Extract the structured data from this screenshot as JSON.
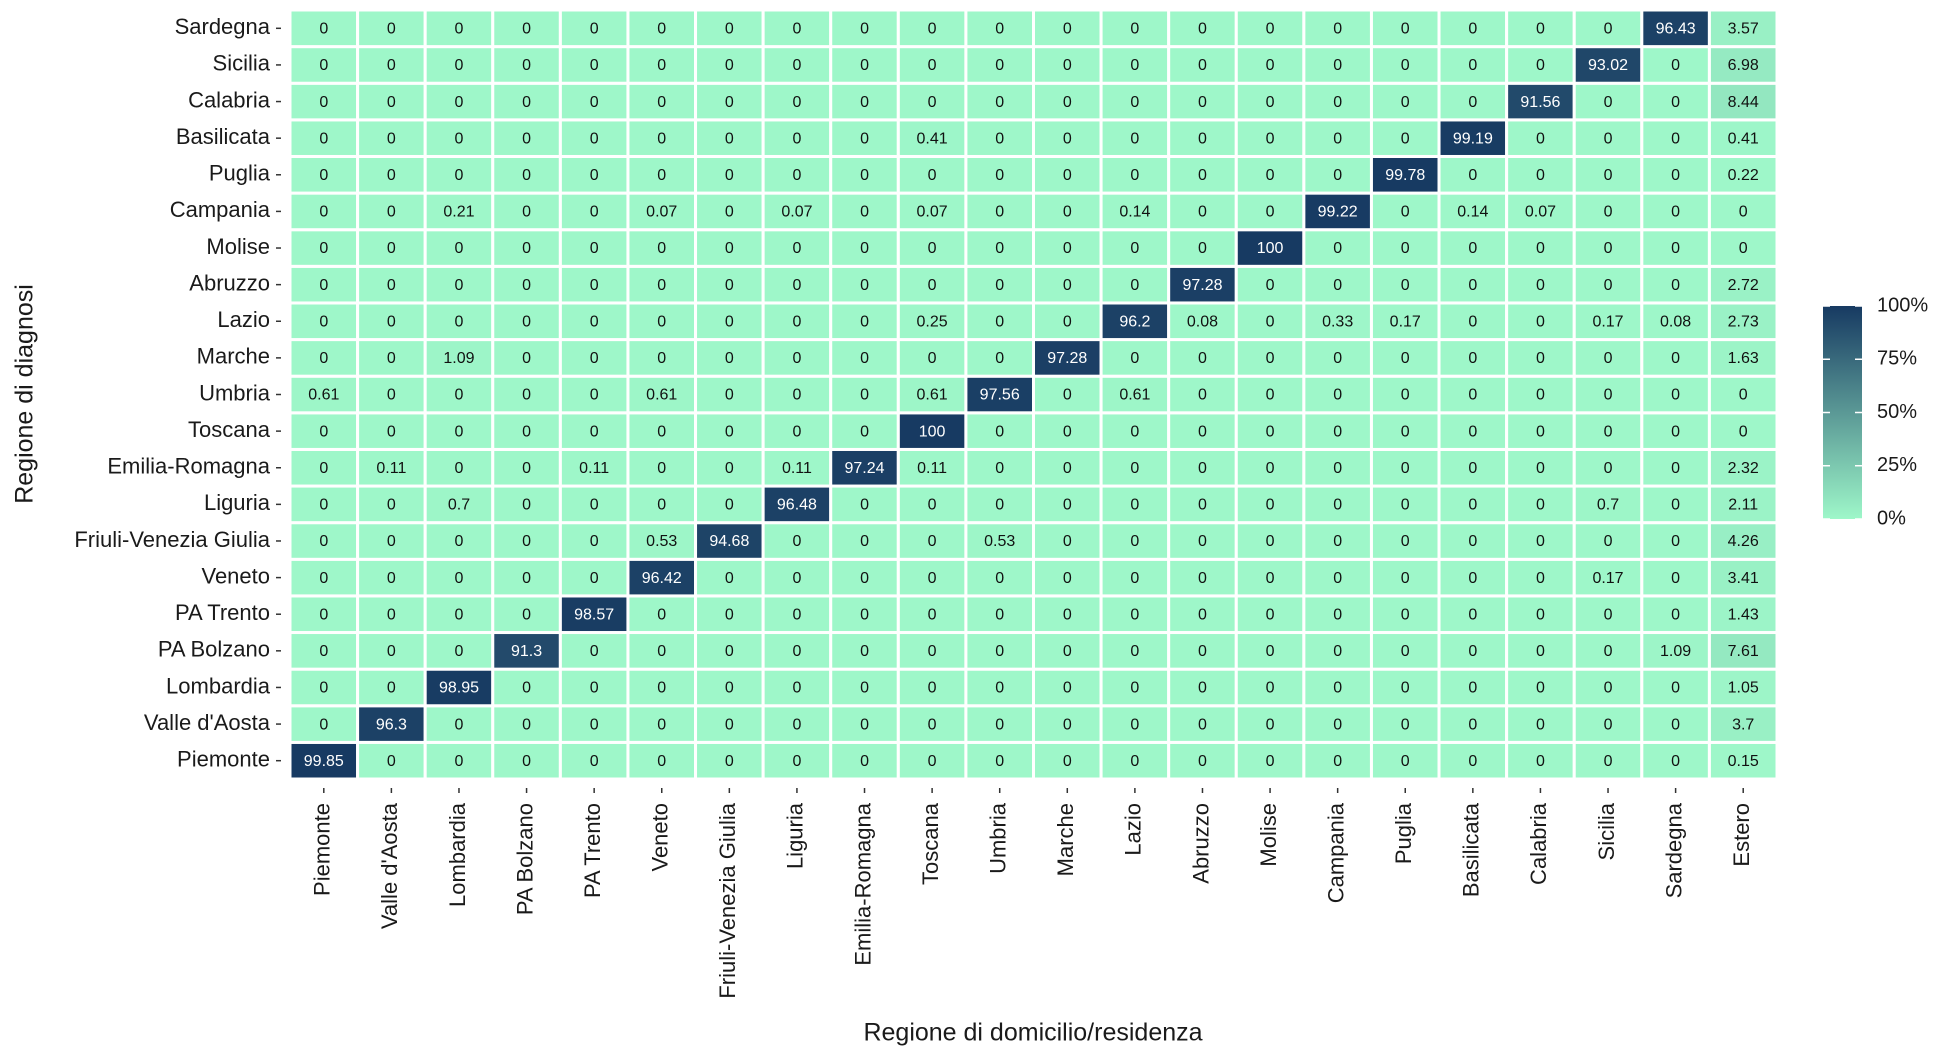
{
  "chart_data": {
    "type": "heatmap",
    "x_label": "Regione di domicilio/residenza",
    "y_label": "Regione di diagnosi",
    "x_categories": [
      "Piemonte",
      "Valle d'Aosta",
      "Lombardia",
      "PA Bolzano",
      "PA Trento",
      "Veneto",
      "Friuli-Venezia Giulia",
      "Liguria",
      "Emilia-Romagna",
      "Toscana",
      "Umbria",
      "Marche",
      "Lazio",
      "Abruzzo",
      "Molise",
      "Campania",
      "Puglia",
      "Basilicata",
      "Calabria",
      "Sicilia",
      "Sardegna",
      "Estero"
    ],
    "y_categories": [
      "Piemonte",
      "Valle d'Aosta",
      "Lombardia",
      "PA Bolzano",
      "PA Trento",
      "Veneto",
      "Friuli-Venezia Giulia",
      "Liguria",
      "Emilia-Romagna",
      "Toscana",
      "Umbria",
      "Marche",
      "Lazio",
      "Abruzzo",
      "Molise",
      "Campania",
      "Puglia",
      "Basilicata",
      "Calabria",
      "Sicilia",
      "Sardegna"
    ],
    "values": [
      [
        99.85,
        0,
        0,
        0,
        0,
        0,
        0,
        0,
        0,
        0,
        0,
        0,
        0,
        0,
        0,
        0,
        0,
        0,
        0,
        0,
        0,
        0.15
      ],
      [
        0,
        96.3,
        0,
        0,
        0,
        0,
        0,
        0,
        0,
        0,
        0,
        0,
        0,
        0,
        0,
        0,
        0,
        0,
        0,
        0,
        0,
        3.7
      ],
      [
        0,
        0,
        98.95,
        0,
        0,
        0,
        0,
        0,
        0,
        0,
        0,
        0,
        0,
        0,
        0,
        0,
        0,
        0,
        0,
        0,
        0,
        1.05
      ],
      [
        0,
        0,
        0,
        91.3,
        0,
        0,
        0,
        0,
        0,
        0,
        0,
        0,
        0,
        0,
        0,
        0,
        0,
        0,
        0,
        0,
        1.09,
        7.61
      ],
      [
        0,
        0,
        0,
        0,
        98.57,
        0,
        0,
        0,
        0,
        0,
        0,
        0,
        0,
        0,
        0,
        0,
        0,
        0,
        0,
        0,
        0,
        1.43
      ],
      [
        0,
        0,
        0,
        0,
        0,
        96.42,
        0,
        0,
        0,
        0,
        0,
        0,
        0,
        0,
        0,
        0,
        0,
        0,
        0,
        0.17,
        0,
        3.41
      ],
      [
        0,
        0,
        0,
        0,
        0,
        0.53,
        94.68,
        0,
        0,
        0,
        0.53,
        0,
        0,
        0,
        0,
        0,
        0,
        0,
        0,
        0,
        0,
        4.26
      ],
      [
        0,
        0,
        0.7,
        0,
        0,
        0,
        0,
        96.48,
        0,
        0,
        0,
        0,
        0,
        0,
        0,
        0,
        0,
        0,
        0,
        0.7,
        0,
        2.11
      ],
      [
        0,
        0.11,
        0,
        0,
        0.11,
        0,
        0,
        0.11,
        97.24,
        0.11,
        0,
        0,
        0,
        0,
        0,
        0,
        0,
        0,
        0,
        0,
        0,
        2.32
      ],
      [
        0,
        0,
        0,
        0,
        0,
        0,
        0,
        0,
        0,
        100,
        0,
        0,
        0,
        0,
        0,
        0,
        0,
        0,
        0,
        0,
        0,
        0
      ],
      [
        0.61,
        0,
        0,
        0,
        0,
        0.61,
        0,
        0,
        0,
        0.61,
        97.56,
        0,
        0.61,
        0,
        0,
        0,
        0,
        0,
        0,
        0,
        0,
        0
      ],
      [
        0,
        0,
        1.09,
        0,
        0,
        0,
        0,
        0,
        0,
        0,
        0,
        97.28,
        0,
        0,
        0,
        0,
        0,
        0,
        0,
        0,
        0,
        1.63
      ],
      [
        0,
        0,
        0,
        0,
        0,
        0,
        0,
        0,
        0,
        0.25,
        0,
        0,
        96.2,
        0.08,
        0,
        0.33,
        0.17,
        0,
        0,
        0.17,
        0.08,
        2.73
      ],
      [
        0,
        0,
        0,
        0,
        0,
        0,
        0,
        0,
        0,
        0,
        0,
        0,
        0,
        97.28,
        0,
        0,
        0,
        0,
        0,
        0,
        0,
        2.72
      ],
      [
        0,
        0,
        0,
        0,
        0,
        0,
        0,
        0,
        0,
        0,
        0,
        0,
        0,
        0,
        100,
        0,
        0,
        0,
        0,
        0,
        0,
        0
      ],
      [
        0,
        0,
        0.21,
        0,
        0,
        0.07,
        0,
        0.07,
        0,
        0.07,
        0,
        0,
        0.14,
        0,
        0,
        99.22,
        0,
        0.14,
        0.07,
        0,
        0,
        0
      ],
      [
        0,
        0,
        0,
        0,
        0,
        0,
        0,
        0,
        0,
        0,
        0,
        0,
        0,
        0,
        0,
        0,
        99.78,
        0,
        0,
        0,
        0,
        0.22
      ],
      [
        0,
        0,
        0,
        0,
        0,
        0,
        0,
        0,
        0,
        0.41,
        0,
        0,
        0,
        0,
        0,
        0,
        0,
        99.19,
        0,
        0,
        0,
        0.41
      ],
      [
        0,
        0,
        0,
        0,
        0,
        0,
        0,
        0,
        0,
        0,
        0,
        0,
        0,
        0,
        0,
        0,
        0,
        0,
        91.56,
        0,
        0,
        8.44
      ],
      [
        0,
        0,
        0,
        0,
        0,
        0,
        0,
        0,
        0,
        0,
        0,
        0,
        0,
        0,
        0,
        0,
        0,
        0,
        0,
        93.02,
        0,
        6.98
      ],
      [
        0,
        0,
        0,
        0,
        0,
        0,
        0,
        0,
        0,
        0,
        0,
        0,
        0,
        0,
        0,
        0,
        0,
        0,
        0,
        0,
        96.43,
        3.57
      ]
    ],
    "color_low": "#9ef7c9",
    "color_high": "#173a62",
    "colorbar_lim": [
      0,
      100
    ],
    "colorbar_ticks": [
      {
        "value": 0,
        "label": "0%"
      },
      {
        "value": 25,
        "label": "25%"
      },
      {
        "value": 50,
        "label": "50%"
      },
      {
        "value": 75,
        "label": "75%"
      },
      {
        "value": 100,
        "label": "100%"
      }
    ]
  }
}
